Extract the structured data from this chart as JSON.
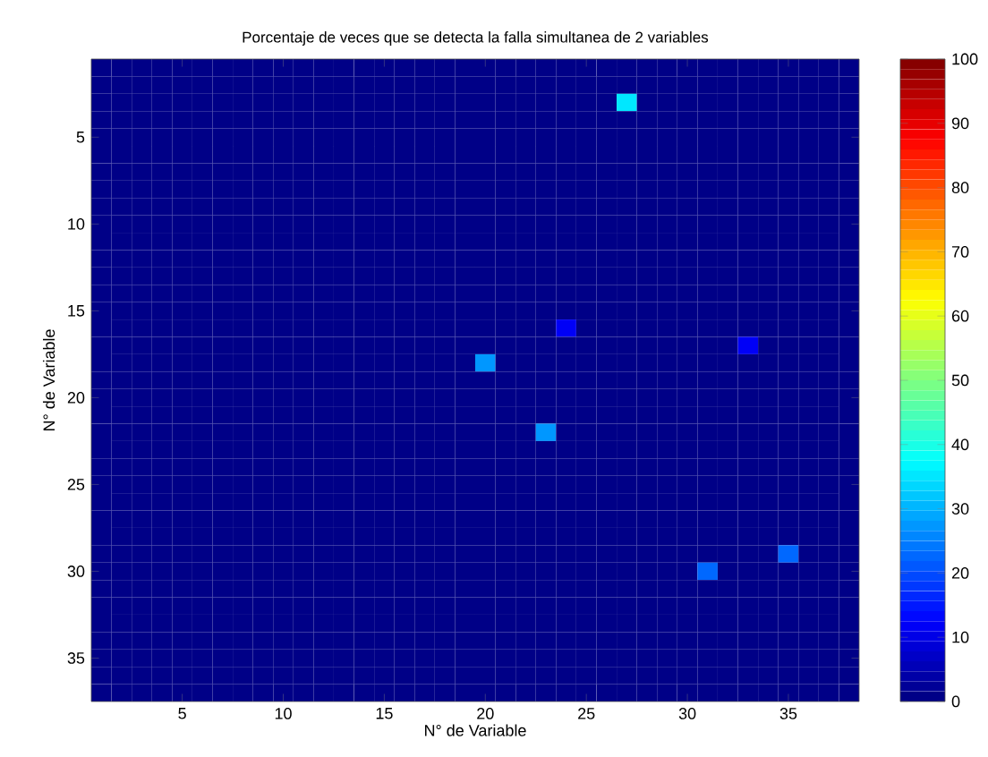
{
  "chart_data": {
    "type": "heatmap",
    "title": "Porcentaje de veces que se detecta la falla simultanea de 2 variables",
    "xlabel": "N° de Variable",
    "ylabel": "N° de Variable",
    "categories": [
      null,
      null,
      null,
      null,
      "5",
      null,
      null,
      null,
      null,
      "10",
      null,
      null,
      null,
      null,
      "15",
      null,
      null,
      null,
      null,
      "20",
      null,
      null,
      null,
      null,
      "25",
      null,
      null,
      null,
      null,
      "30",
      null,
      null,
      null,
      null,
      "35",
      null,
      null,
      null
    ],
    "y_categories": [
      null,
      null,
      null,
      null,
      "5",
      null,
      null,
      null,
      null,
      "10",
      null,
      null,
      null,
      null,
      "15",
      null,
      null,
      null,
      null,
      "20",
      null,
      null,
      null,
      null,
      "25",
      null,
      null,
      null,
      null,
      "30",
      null,
      null,
      null,
      null,
      "35",
      null,
      null
    ],
    "cells": [
      [
        0,
        0,
        0,
        0,
        0,
        0,
        0,
        0,
        0,
        0,
        0,
        0,
        0,
        0,
        0,
        0,
        0,
        0,
        0,
        0,
        0,
        0,
        0,
        0,
        0,
        0,
        0,
        0,
        0,
        0,
        0,
        0,
        0,
        0,
        0,
        0,
        0,
        0
      ],
      [
        0,
        0,
        0,
        0,
        0,
        0,
        0,
        0,
        0,
        0,
        0,
        0,
        0,
        0,
        0,
        0,
        0,
        0,
        0,
        0,
        0,
        0,
        0,
        0,
        0,
        0,
        0,
        0,
        0,
        0,
        0,
        0,
        0,
        0,
        0,
        0,
        0,
        0
      ],
      [
        0,
        0,
        0,
        0,
        0,
        0,
        0,
        0,
        0,
        0,
        0,
        0,
        0,
        0,
        0,
        0,
        0,
        0,
        0,
        0,
        0,
        0,
        0,
        0,
        0,
        0,
        35,
        0,
        0,
        0,
        0,
        0,
        0,
        0,
        0,
        0,
        0,
        0
      ],
      [
        0,
        0,
        0,
        0,
        0,
        0,
        0,
        0,
        0,
        0,
        0,
        0,
        0,
        0,
        0,
        0,
        0,
        0,
        0,
        0,
        0,
        0,
        0,
        0,
        0,
        0,
        0,
        0,
        0,
        0,
        0,
        0,
        0,
        0,
        0,
        0,
        0,
        0
      ],
      [
        0,
        0,
        0,
        0,
        0,
        0,
        0,
        0,
        0,
        0,
        0,
        0,
        0,
        0,
        0,
        0,
        0,
        0,
        0,
        0,
        0,
        0,
        0,
        0,
        0,
        0,
        0,
        0,
        0,
        0,
        0,
        0,
        0,
        0,
        0,
        0,
        0,
        0
      ],
      [
        0,
        0,
        0,
        0,
        0,
        0,
        0,
        0,
        0,
        0,
        0,
        0,
        0,
        0,
        0,
        0,
        0,
        0,
        0,
        0,
        0,
        0,
        0,
        0,
        0,
        0,
        0,
        0,
        0,
        0,
        0,
        0,
        0,
        0,
        0,
        0,
        0,
        0
      ],
      [
        0,
        0,
        0,
        0,
        0,
        0,
        0,
        0,
        0,
        0,
        0,
        0,
        0,
        0,
        0,
        0,
        0,
        0,
        0,
        0,
        0,
        0,
        0,
        0,
        0,
        0,
        0,
        0,
        0,
        0,
        0,
        0,
        0,
        0,
        0,
        0,
        0,
        0
      ],
      [
        0,
        0,
        0,
        0,
        0,
        0,
        0,
        0,
        0,
        0,
        0,
        0,
        0,
        0,
        0,
        0,
        0,
        0,
        0,
        0,
        0,
        0,
        0,
        0,
        0,
        0,
        0,
        0,
        0,
        0,
        0,
        0,
        0,
        0,
        0,
        0,
        0,
        0
      ],
      [
        0,
        0,
        0,
        0,
        0,
        0,
        0,
        0,
        0,
        0,
        0,
        0,
        0,
        0,
        0,
        0,
        0,
        0,
        0,
        0,
        0,
        0,
        0,
        0,
        0,
        0,
        0,
        0,
        0,
        0,
        0,
        0,
        0,
        0,
        0,
        0,
        0,
        0
      ],
      [
        0,
        0,
        0,
        0,
        0,
        0,
        0,
        0,
        0,
        0,
        0,
        0,
        0,
        0,
        0,
        0,
        0,
        0,
        0,
        0,
        0,
        0,
        0,
        0,
        0,
        0,
        0,
        0,
        0,
        0,
        0,
        0,
        0,
        0,
        0,
        0,
        0,
        0
      ],
      [
        0,
        0,
        0,
        0,
        0,
        0,
        0,
        0,
        0,
        0,
        0,
        0,
        0,
        0,
        0,
        0,
        0,
        0,
        0,
        0,
        0,
        0,
        0,
        0,
        0,
        0,
        0,
        0,
        0,
        0,
        0,
        0,
        0,
        0,
        0,
        0,
        0,
        0
      ],
      [
        0,
        0,
        0,
        0,
        0,
        0,
        0,
        0,
        0,
        0,
        0,
        0,
        0,
        0,
        0,
        0,
        0,
        0,
        0,
        0,
        0,
        0,
        0,
        0,
        0,
        0,
        0,
        0,
        0,
        0,
        0,
        0,
        0,
        0,
        0,
        0,
        0,
        0
      ],
      [
        0,
        0,
        0,
        0,
        0,
        0,
        0,
        0,
        0,
        0,
        0,
        0,
        0,
        0,
        0,
        0,
        0,
        0,
        0,
        0,
        0,
        0,
        0,
        0,
        0,
        0,
        0,
        0,
        0,
        0,
        0,
        0,
        0,
        0,
        0,
        0,
        0,
        0
      ],
      [
        0,
        0,
        0,
        0,
        0,
        0,
        0,
        0,
        0,
        0,
        0,
        0,
        0,
        0,
        0,
        0,
        0,
        0,
        0,
        0,
        0,
        0,
        0,
        0,
        0,
        0,
        0,
        0,
        0,
        0,
        0,
        0,
        0,
        0,
        0,
        0,
        0,
        0
      ],
      [
        0,
        0,
        0,
        0,
        0,
        0,
        0,
        0,
        0,
        0,
        0,
        0,
        0,
        0,
        0,
        0,
        0,
        0,
        0,
        0,
        0,
        0,
        0,
        0,
        0,
        0,
        0,
        0,
        0,
        0,
        0,
        0,
        0,
        0,
        0,
        0,
        0,
        0
      ],
      [
        0,
        0,
        0,
        0,
        0,
        0,
        0,
        0,
        0,
        0,
        0,
        0,
        0,
        0,
        0,
        0,
        0,
        0,
        0,
        0,
        0,
        0,
        0,
        12,
        0,
        0,
        0,
        0,
        0,
        0,
        0,
        0,
        0,
        0,
        0,
        0,
        0,
        0
      ],
      [
        0,
        0,
        0,
        0,
        0,
        0,
        0,
        0,
        0,
        0,
        0,
        0,
        0,
        0,
        0,
        0,
        0,
        0,
        0,
        0,
        0,
        0,
        0,
        0,
        0,
        0,
        0,
        0,
        0,
        0,
        0,
        0,
        12,
        0,
        0,
        0,
        0,
        0
      ],
      [
        0,
        0,
        0,
        0,
        0,
        0,
        0,
        0,
        0,
        0,
        0,
        0,
        0,
        0,
        0,
        0,
        0,
        0,
        0,
        28,
        0,
        0,
        0,
        0,
        0,
        0,
        0,
        0,
        0,
        0,
        0,
        0,
        0,
        0,
        0,
        0,
        0,
        0
      ],
      [
        0,
        0,
        0,
        0,
        0,
        0,
        0,
        0,
        0,
        0,
        0,
        0,
        0,
        0,
        0,
        0,
        0,
        0,
        0,
        0,
        0,
        0,
        0,
        0,
        0,
        0,
        0,
        0,
        0,
        0,
        0,
        0,
        0,
        0,
        0,
        0,
        0,
        0
      ],
      [
        0,
        0,
        0,
        0,
        0,
        0,
        0,
        0,
        0,
        0,
        0,
        0,
        0,
        0,
        0,
        0,
        0,
        0,
        0,
        0,
        0,
        0,
        0,
        0,
        0,
        0,
        0,
        0,
        0,
        0,
        0,
        0,
        0,
        0,
        0,
        0,
        0,
        0
      ],
      [
        0,
        0,
        0,
        0,
        0,
        0,
        0,
        0,
        0,
        0,
        0,
        0,
        0,
        0,
        0,
        0,
        0,
        0,
        0,
        0,
        0,
        0,
        0,
        0,
        0,
        0,
        0,
        0,
        0,
        0,
        0,
        0,
        0,
        0,
        0,
        0,
        0,
        0
      ],
      [
        0,
        0,
        0,
        0,
        0,
        0,
        0,
        0,
        0,
        0,
        0,
        0,
        0,
        0,
        0,
        0,
        0,
        0,
        0,
        0,
        0,
        0,
        28,
        0,
        0,
        0,
        0,
        0,
        0,
        0,
        0,
        0,
        0,
        0,
        0,
        0,
        0,
        0
      ],
      [
        0,
        0,
        0,
        0,
        0,
        0,
        0,
        0,
        0,
        0,
        0,
        0,
        0,
        0,
        0,
        0,
        0,
        0,
        0,
        0,
        0,
        0,
        0,
        0,
        0,
        0,
        0,
        0,
        0,
        0,
        0,
        0,
        0,
        0,
        0,
        0,
        0,
        0
      ],
      [
        0,
        0,
        0,
        0,
        0,
        0,
        0,
        0,
        0,
        0,
        0,
        0,
        0,
        0,
        0,
        0,
        0,
        0,
        0,
        0,
        0,
        0,
        0,
        0,
        0,
        0,
        0,
        0,
        0,
        0,
        0,
        0,
        0,
        0,
        0,
        0,
        0,
        0
      ],
      [
        0,
        0,
        0,
        0,
        0,
        0,
        0,
        0,
        0,
        0,
        0,
        0,
        0,
        0,
        0,
        0,
        0,
        0,
        0,
        0,
        0,
        0,
        0,
        0,
        0,
        0,
        0,
        0,
        0,
        0,
        0,
        0,
        0,
        0,
        0,
        0,
        0,
        0
      ],
      [
        0,
        0,
        0,
        0,
        0,
        0,
        0,
        0,
        0,
        0,
        0,
        0,
        0,
        0,
        0,
        0,
        0,
        0,
        0,
        0,
        0,
        0,
        0,
        0,
        0,
        0,
        0,
        0,
        0,
        0,
        0,
        0,
        0,
        0,
        0,
        0,
        0,
        0
      ],
      [
        0,
        0,
        0,
        0,
        0,
        0,
        0,
        0,
        0,
        0,
        0,
        0,
        0,
        0,
        0,
        0,
        0,
        0,
        0,
        0,
        0,
        0,
        0,
        0,
        0,
        0,
        0,
        0,
        0,
        0,
        0,
        0,
        0,
        0,
        0,
        0,
        0,
        0
      ],
      [
        0,
        0,
        0,
        0,
        0,
        0,
        0,
        0,
        0,
        0,
        0,
        0,
        0,
        0,
        0,
        0,
        0,
        0,
        0,
        0,
        0,
        0,
        0,
        0,
        0,
        0,
        0,
        0,
        0,
        0,
        0,
        0,
        0,
        0,
        0,
        0,
        0,
        0
      ],
      [
        0,
        0,
        0,
        0,
        0,
        0,
        0,
        0,
        0,
        0,
        0,
        0,
        0,
        0,
        0,
        0,
        0,
        0,
        0,
        0,
        0,
        0,
        0,
        0,
        0,
        0,
        0,
        0,
        0,
        0,
        0,
        0,
        0,
        0,
        22,
        0,
        0,
        0
      ],
      [
        0,
        0,
        0,
        0,
        0,
        0,
        0,
        0,
        0,
        0,
        0,
        0,
        0,
        0,
        0,
        0,
        0,
        0,
        0,
        0,
        0,
        0,
        0,
        0,
        0,
        0,
        0,
        0,
        0,
        0,
        22,
        0,
        0,
        0,
        0,
        0,
        0,
        0
      ],
      [
        0,
        0,
        0,
        0,
        0,
        0,
        0,
        0,
        0,
        0,
        0,
        0,
        0,
        0,
        0,
        0,
        0,
        0,
        0,
        0,
        0,
        0,
        0,
        0,
        0,
        0,
        0,
        0,
        0,
        0,
        0,
        0,
        0,
        0,
        0,
        0,
        0,
        0
      ],
      [
        0,
        0,
        0,
        0,
        0,
        0,
        0,
        0,
        0,
        0,
        0,
        0,
        0,
        0,
        0,
        0,
        0,
        0,
        0,
        0,
        0,
        0,
        0,
        0,
        0,
        0,
        0,
        0,
        0,
        0,
        0,
        0,
        0,
        0,
        0,
        0,
        0,
        0
      ],
      [
        0,
        0,
        0,
        0,
        0,
        0,
        0,
        0,
        0,
        0,
        0,
        0,
        0,
        0,
        0,
        0,
        0,
        0,
        0,
        0,
        0,
        0,
        0,
        0,
        0,
        0,
        0,
        0,
        0,
        0,
        0,
        0,
        0,
        0,
        0,
        0,
        0,
        0
      ],
      [
        0,
        0,
        0,
        0,
        0,
        0,
        0,
        0,
        0,
        0,
        0,
        0,
        0,
        0,
        0,
        0,
        0,
        0,
        0,
        0,
        0,
        0,
        0,
        0,
        0,
        0,
        0,
        0,
        0,
        0,
        0,
        0,
        0,
        0,
        0,
        0,
        0,
        0
      ],
      [
        0,
        0,
        0,
        0,
        0,
        0,
        0,
        0,
        0,
        0,
        0,
        0,
        0,
        0,
        0,
        0,
        0,
        0,
        0,
        0,
        0,
        0,
        0,
        0,
        0,
        0,
        0,
        0,
        0,
        0,
        0,
        0,
        0,
        0,
        0,
        0,
        0,
        0
      ],
      [
        0,
        0,
        0,
        0,
        0,
        0,
        0,
        0,
        0,
        0,
        0,
        0,
        0,
        0,
        0,
        0,
        0,
        0,
        0,
        0,
        0,
        0,
        0,
        0,
        0,
        0,
        0,
        0,
        0,
        0,
        0,
        0,
        0,
        0,
        0,
        0,
        0,
        0
      ],
      [
        0,
        0,
        0,
        0,
        0,
        0,
        0,
        0,
        0,
        0,
        0,
        0,
        0,
        0,
        0,
        0,
        0,
        0,
        0,
        0,
        0,
        0,
        0,
        0,
        0,
        0,
        0,
        0,
        0,
        0,
        0,
        0,
        0,
        0,
        0,
        0,
        0,
        0
      ]
    ],
    "clim": [
      0,
      100
    ],
    "cticks": [
      0,
      10,
      20,
      30,
      40,
      50,
      60,
      70,
      80,
      90,
      100
    ]
  }
}
